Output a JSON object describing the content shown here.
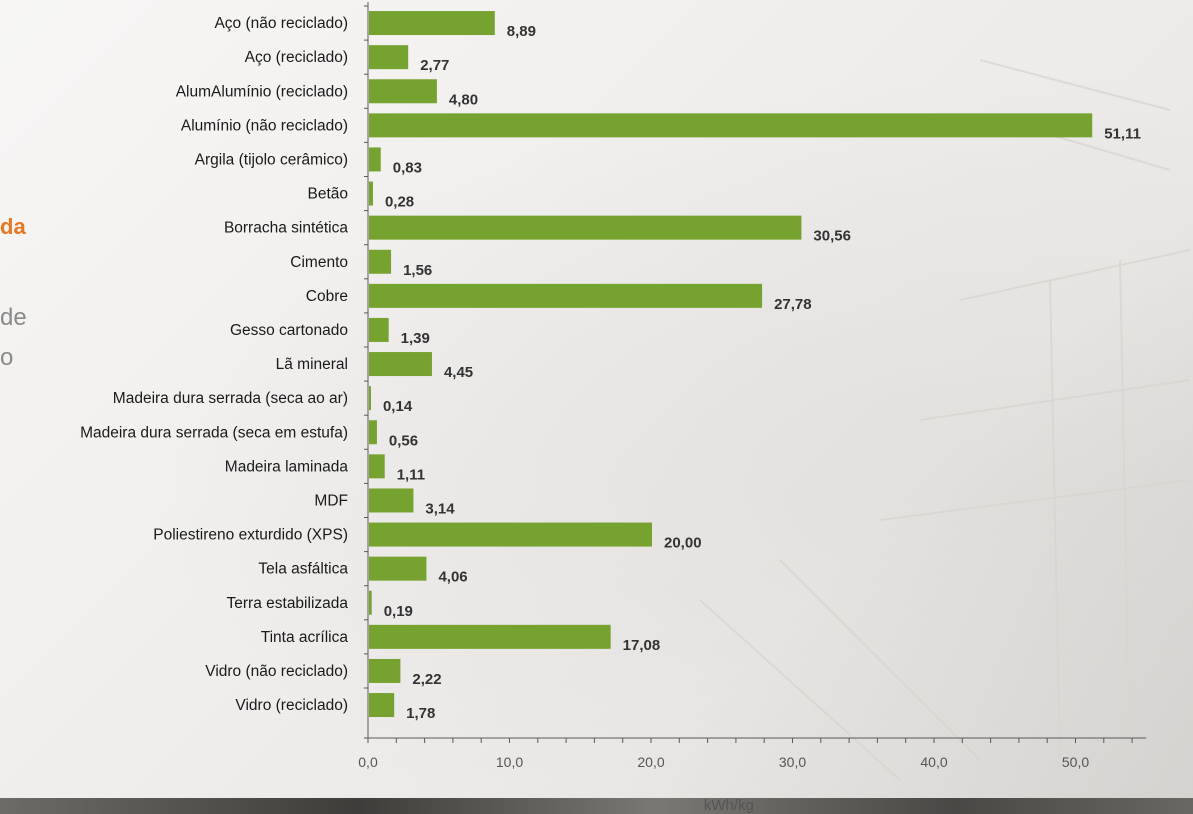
{
  "background": {
    "left_text": {
      "orange_fragment": "da",
      "gray_fragment_1": "de",
      "gray_fragment_2": "o"
    },
    "colors": {
      "orange": "#e87722",
      "gray": "#8a8a8a"
    }
  },
  "chart_data": {
    "type": "bar",
    "orientation": "horizontal",
    "categories": [
      "Aço (não reciclado)",
      "Aço (reciclado)",
      "AlumAlumínio (reciclado)",
      "Alumínio (não reciclado)",
      "Argila (tijolo cerâmico)",
      "Betão",
      "Borracha sintética",
      "Cimento",
      "Cobre",
      "Gesso cartonado",
      "Lã mineral",
      "Madeira dura serrada (seca ao ar)",
      "Madeira dura serrada (seca em estufa)",
      "Madeira laminada",
      "MDF",
      "Poliestireno exturdido (XPS)",
      "Tela asfáltica",
      "Terra estabilizada",
      "Tinta acrílica",
      "Vidro (não reciclado)",
      "Vidro (reciclado)"
    ],
    "values": [
      8.89,
      2.77,
      4.8,
      51.11,
      0.83,
      0.28,
      30.56,
      1.56,
      27.78,
      1.39,
      4.45,
      0.14,
      0.56,
      1.11,
      3.14,
      20.0,
      4.06,
      0.19,
      17.08,
      2.22,
      1.78
    ],
    "value_labels": [
      "8,89",
      "2,77",
      "4,80",
      "51,11",
      "0,83",
      "0,28",
      "30,56",
      "1,56",
      "27,78",
      "1,39",
      "4,45",
      "0,14",
      "0,56",
      "1,11",
      "3,14",
      "20,00",
      "4,06",
      "0,19",
      "17,08",
      "2,22",
      "1,78"
    ],
    "xlim": [
      0,
      55
    ],
    "xticks": [
      0,
      10,
      20,
      30,
      40,
      50
    ],
    "xtick_labels": [
      "0,0",
      "10,0",
      "20,0",
      "30,0",
      "40,0",
      "50,0"
    ],
    "minor_tick_step": 2,
    "xlabel": "kWh/kg",
    "ylabel": "",
    "title": "",
    "grid": false,
    "legend": false,
    "colors": {
      "bar": "#76a22f",
      "axis": "#595959",
      "label": "#1a1a1a",
      "value_label": "#333333",
      "tick_label": "#555555"
    }
  }
}
